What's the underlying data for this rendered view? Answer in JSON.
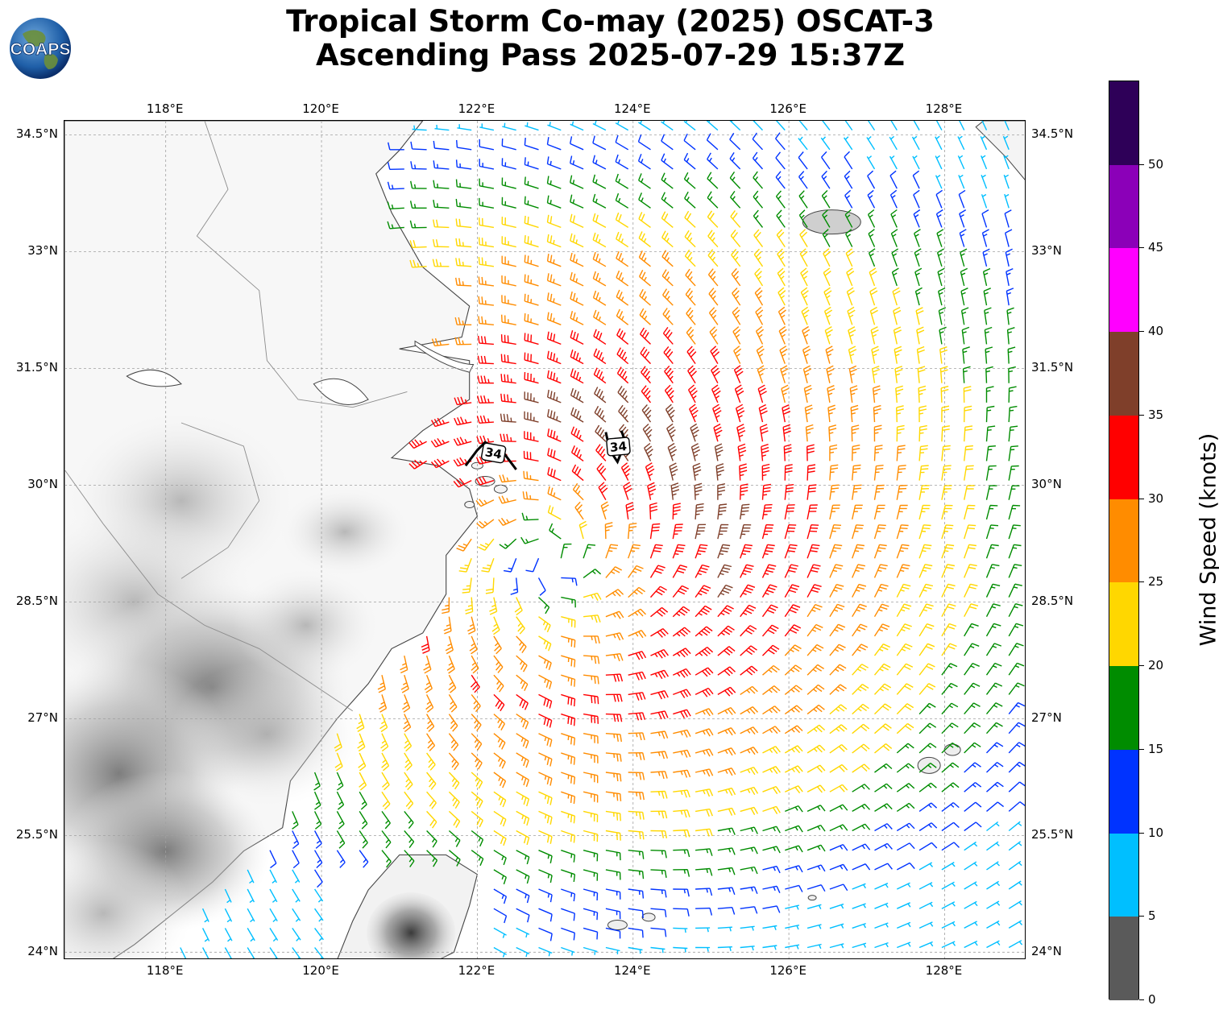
{
  "title": {
    "line1": "Tropical Storm Co-may (2025) OSCAT-3",
    "line2": "Ascending Pass 2025-07-29 15:37Z"
  },
  "logo": {
    "text": "COAPS",
    "icon": "globe-icon"
  },
  "axes": {
    "lon_labels": [
      "118°E",
      "120°E",
      "122°E",
      "124°E",
      "126°E",
      "128°E"
    ],
    "lat_labels": [
      "34.5°N",
      "33°N",
      "31.5°N",
      "30°N",
      "28.5°N",
      "27°N",
      "25.5°N",
      "24°N"
    ],
    "lon_values": [
      118,
      120,
      122,
      124,
      126,
      128
    ],
    "lat_values": [
      34.5,
      33,
      31.5,
      30,
      28.5,
      27,
      25.5,
      24
    ],
    "lon_range": [
      116.7,
      129.05
    ],
    "lat_range": [
      23.9,
      34.68
    ],
    "grid": true
  },
  "storm": {
    "center_lon": 123.0,
    "center_lat": 29.05
  },
  "wind_radii_labels": [
    {
      "text": "34",
      "lon": 122.2,
      "lat": 30.42
    },
    {
      "text": "34",
      "lon": 123.8,
      "lat": 30.5
    }
  ],
  "colorbar": {
    "title": "Wind Speed (knots)",
    "tick_labels": [
      "0",
      "5",
      "10",
      "15",
      "20",
      "25",
      "30",
      "35",
      "40",
      "45",
      "50"
    ],
    "bins": [
      {
        "min": 0,
        "max": 5,
        "color": "#5a5a5a"
      },
      {
        "min": 5,
        "max": 10,
        "color": "#00bfff"
      },
      {
        "min": 10,
        "max": 15,
        "color": "#0033ff"
      },
      {
        "min": 15,
        "max": 20,
        "color": "#008c00"
      },
      {
        "min": 20,
        "max": 25,
        "color": "#ffd700"
      },
      {
        "min": 25,
        "max": 30,
        "color": "#ff8c00"
      },
      {
        "min": 30,
        "max": 35,
        "color": "#ff0000"
      },
      {
        "min": 35,
        "max": 40,
        "color": "#7f3f2a"
      },
      {
        "min": 40,
        "max": 45,
        "color": "#ff00ff"
      },
      {
        "min": 45,
        "max": 50,
        "color": "#8b00b8"
      },
      {
        "min": 50,
        "max": 55,
        "color": "#2e0058"
      }
    ]
  }
}
